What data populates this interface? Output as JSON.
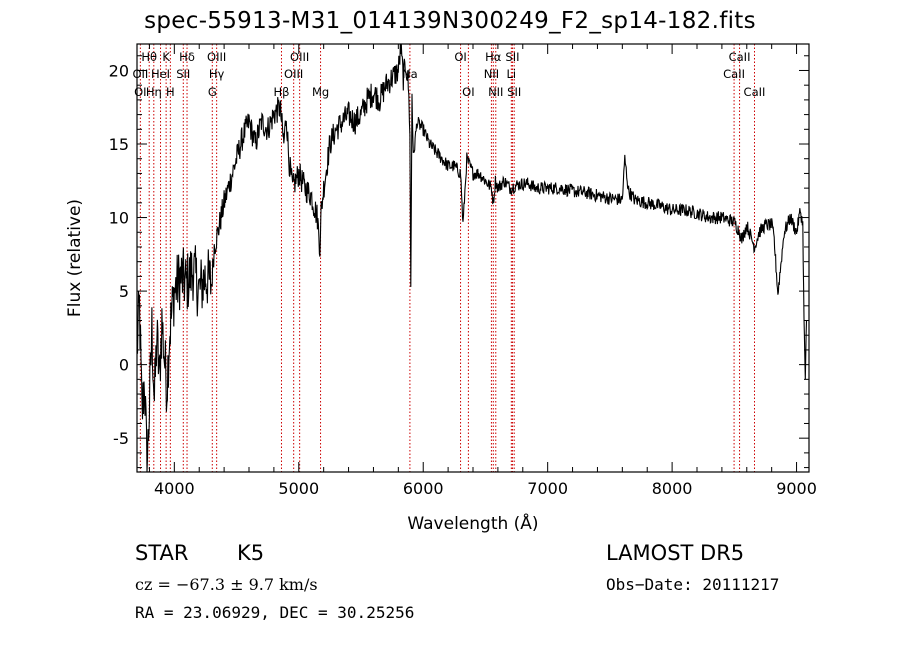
{
  "chart_data": {
    "type": "line",
    "title": "spec-55913-M31_014139N300249_F2_sp14-182.fits",
    "xlabel": "Wavelength (Å)",
    "ylabel": "Flux (relative)",
    "xlim": [
      3700,
      9100
    ],
    "ylim": [
      -7.3,
      21.8
    ],
    "xticks": [
      "4000",
      "5000",
      "6000",
      "7000",
      "8000",
      "9000"
    ],
    "yticks": [
      "-5",
      "0",
      "5",
      "10",
      "15",
      "20"
    ],
    "grid": false,
    "series": [
      {
        "x": [
          3700,
          3720,
          3740,
          3760,
          3780,
          3800,
          3820,
          3840,
          3860,
          3880,
          3900,
          3920,
          3940,
          3960,
          3980,
          4000,
          4050,
          4100,
          4150,
          4200,
          4250,
          4300,
          4320,
          4350,
          4400,
          4450,
          4500,
          4550,
          4600,
          4650,
          4700,
          4750,
          4800,
          4850,
          4880,
          4900,
          4920,
          4950,
          5000,
          5050,
          5100,
          5150,
          5170,
          5180,
          5200,
          5250,
          5300,
          5350,
          5400,
          5450,
          5500,
          5550,
          5600,
          5650,
          5700,
          5750,
          5800,
          5820,
          5840,
          5860,
          5880,
          5893,
          5900,
          5910,
          5920,
          5950,
          6000,
          6050,
          6100,
          6150,
          6200,
          6250,
          6300,
          6320,
          6350,
          6400,
          6450,
          6500,
          6550,
          6563,
          6580,
          6600,
          6650,
          6700,
          6750,
          6800,
          6850,
          6900,
          7000,
          7100,
          7200,
          7300,
          7400,
          7500,
          7600,
          7620,
          7650,
          7700,
          7800,
          7900,
          8000,
          8100,
          8200,
          8300,
          8400,
          8500,
          8542,
          8560,
          8600,
          8662,
          8700,
          8750,
          8800,
          8820,
          8850,
          8900,
          8950,
          9000,
          9030,
          9050,
          9060,
          9070,
          9080
        ],
        "y": [
          1.0,
          4.0,
          -3.5,
          -1.0,
          -7.0,
          -3.0,
          2.5,
          -2.5,
          2.0,
          -1.0,
          3.0,
          0.5,
          -1.5,
          2.0,
          3.5,
          5.0,
          6.0,
          5.5,
          6.5,
          5.0,
          6.0,
          5.5,
          8.0,
          9.0,
          11.0,
          12.5,
          14.0,
          15.5,
          16.5,
          15.0,
          16.5,
          16.0,
          17.0,
          17.5,
          15.0,
          17.0,
          14.0,
          12.0,
          13.0,
          12.0,
          11.5,
          10.0,
          8.0,
          10.5,
          12.0,
          15.0,
          16.0,
          16.5,
          17.0,
          16.5,
          17.0,
          18.0,
          18.5,
          18.0,
          19.0,
          19.5,
          20.0,
          21.5,
          19.5,
          20.5,
          19.0,
          16.0,
          5.2,
          18.5,
          14.0,
          16.5,
          16.0,
          15.0,
          14.5,
          14.0,
          13.5,
          13.5,
          13.0,
          9.5,
          14.0,
          13.0,
          13.0,
          12.5,
          12.0,
          11.0,
          12.5,
          12.0,
          12.5,
          12.0,
          12.2,
          12.3,
          12.3,
          12.0,
          12.0,
          12.0,
          11.8,
          11.7,
          11.5,
          11.3,
          11.2,
          14.0,
          11.8,
          11.2,
          11.0,
          10.8,
          10.5,
          10.5,
          10.3,
          10.0,
          10.0,
          9.7,
          9.0,
          8.5,
          9.5,
          8.0,
          9.0,
          9.5,
          9.5,
          8.5,
          4.8,
          9.0,
          10.0,
          9.0,
          10.5,
          9.5,
          3.0,
          -1.0,
          3.0
        ]
      }
    ],
    "line_labels": [
      {
        "text": "Hθ",
        "wave": 3798,
        "row": 1
      },
      {
        "text": "K",
        "wave": 3934,
        "row": 1
      },
      {
        "text": "Hδ",
        "wave": 4102,
        "row": 1
      },
      {
        "text": "OIII",
        "wave": 4340,
        "row": 1
      },
      {
        "text": "OIII",
        "wave": 5007,
        "row": 1
      },
      {
        "text": "OI",
        "wave": 6300,
        "row": 1
      },
      {
        "text": "Hα",
        "wave": 6563,
        "row": 1
      },
      {
        "text": "SII",
        "wave": 6717,
        "row": 1
      },
      {
        "text": "CaII",
        "wave": 8542,
        "row": 1
      },
      {
        "text": "OII",
        "wave": 3727,
        "row": 2
      },
      {
        "text": "HeI",
        "wave": 3889,
        "row": 2
      },
      {
        "text": "SII",
        "wave": 4072,
        "row": 2
      },
      {
        "text": "Hγ",
        "wave": 4340,
        "row": 2
      },
      {
        "text": "OIII",
        "wave": 4959,
        "row": 2
      },
      {
        "text": "Na",
        "wave": 5893,
        "row": 2
      },
      {
        "text": "NII",
        "wave": 6548,
        "row": 2
      },
      {
        "text": "Li",
        "wave": 6708,
        "row": 2
      },
      {
        "text": "CaII",
        "wave": 8498,
        "row": 2
      },
      {
        "text": "OI",
        "wave": 3727,
        "row": 3
      },
      {
        "text": "Hη",
        "wave": 3835,
        "row": 3
      },
      {
        "text": "H",
        "wave": 3968,
        "row": 3
      },
      {
        "text": "G",
        "wave": 4305,
        "row": 3
      },
      {
        "text": "Hβ",
        "wave": 4861,
        "row": 3
      },
      {
        "text": "Mg",
        "wave": 5175,
        "row": 3
      },
      {
        "text": "OI",
        "wave": 6363,
        "row": 3
      },
      {
        "text": "NII",
        "wave": 6583,
        "row": 3
      },
      {
        "text": "SII",
        "wave": 6731,
        "row": 3
      },
      {
        "text": "CaII",
        "wave": 8662,
        "row": 3
      }
    ],
    "line_marks": [
      3727,
      3798,
      3835,
      3889,
      3934,
      3968,
      4072,
      4102,
      4305,
      4340,
      4861,
      4959,
      5007,
      5175,
      5893,
      6300,
      6363,
      6548,
      6563,
      6583,
      6708,
      6717,
      6731,
      8498,
      8542,
      8662
    ],
    "line_mark_color": "#cc0000",
    "spectrum_color": "#000000"
  },
  "info": {
    "object_class": "STAR",
    "subclass": "K5",
    "survey": "LAMOST  DR5",
    "velocity": "cz = −67.3 ± 9.7 km/s",
    "obs_date": "Obs−Date: 20111217",
    "coords": "RA =  23.06929, DEC =  30.25256"
  }
}
